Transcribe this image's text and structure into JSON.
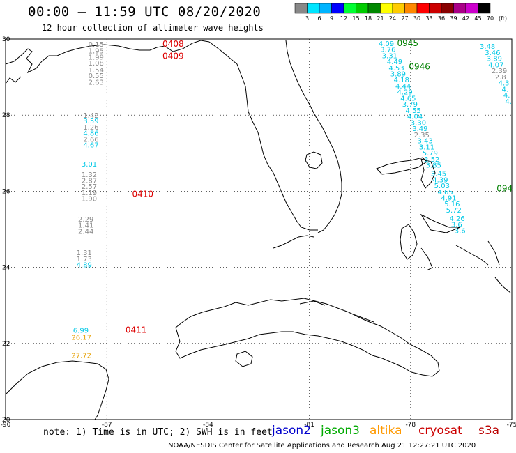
{
  "header": {
    "title": "00:00 – 11:59 UTC 08/20/2020",
    "subtitle": "12 hour collection of altimeter wave heights"
  },
  "legend": {
    "unit": "(ft)",
    "labels": [
      "3",
      "6",
      "9",
      "12",
      "15",
      "18",
      "21",
      "24",
      "27",
      "30",
      "33",
      "36",
      "39",
      "42",
      "45",
      "70"
    ],
    "colors": [
      "#888888",
      "#00e5ff",
      "#00b4ff",
      "#0000ff",
      "#00ff33",
      "#00cc00",
      "#008800",
      "#ffff00",
      "#ffcc00",
      "#ff8800",
      "#ff0000",
      "#cc0000",
      "#880000",
      "#aa0088",
      "#cc00cc",
      "#000000"
    ]
  },
  "axes": {
    "x_labels": [
      "-90",
      "-87",
      "-84",
      "-81",
      "-78",
      "-75"
    ],
    "y_labels": [
      "30",
      "28",
      "26",
      "24",
      "22",
      "20"
    ],
    "lon_range": [
      -90,
      -75
    ],
    "lat_range": [
      20,
      30
    ]
  },
  "tracks": [
    {
      "time": "0408",
      "color": "#dd0000",
      "lon": -85.35,
      "lat": 29.8
    },
    {
      "time": "0409",
      "color": "#dd0000",
      "lon": -85.35,
      "lat": 29.48
    },
    {
      "time": "0410",
      "color": "#dd0000",
      "lon": -86.25,
      "lat": 25.85
    },
    {
      "time": "0411",
      "color": "#dd0000",
      "lon": -86.45,
      "lat": 22.28
    },
    {
      "time": "0945",
      "color": "#008000",
      "lon": -78.4,
      "lat": 29.82
    },
    {
      "time": "0946",
      "color": "#008000",
      "lon": -78.05,
      "lat": 29.2
    },
    {
      "time": "094",
      "color": "#008000",
      "lon": -75.45,
      "lat": 26.0
    }
  ],
  "readings": [
    {
      "v": "0.15",
      "c": "#888888",
      "lon": -87.55,
      "lat": 29.8
    },
    {
      "v": "1.95",
      "c": "#888888",
      "lon": -87.55,
      "lat": 29.62
    },
    {
      "v": "1.99",
      "c": "#888888",
      "lon": -87.55,
      "lat": 29.46
    },
    {
      "v": "1.08",
      "c": "#888888",
      "lon": -87.55,
      "lat": 29.3
    },
    {
      "v": "1.54",
      "c": "#888888",
      "lon": -87.55,
      "lat": 29.12
    },
    {
      "v": "0.55",
      "c": "#888888",
      "lon": -87.55,
      "lat": 28.97
    },
    {
      "v": "2.63",
      "c": "#888888",
      "lon": -87.55,
      "lat": 28.8
    },
    {
      "v": "1.42",
      "c": "#888888",
      "lon": -87.7,
      "lat": 27.93
    },
    {
      "v": "3.59",
      "c": "#00c8e6",
      "lon": -87.7,
      "lat": 27.78
    },
    {
      "v": "1.26",
      "c": "#888888",
      "lon": -87.7,
      "lat": 27.62
    },
    {
      "v": "4.86",
      "c": "#00c8e6",
      "lon": -87.7,
      "lat": 27.46
    },
    {
      "v": "2.66",
      "c": "#888888",
      "lon": -87.7,
      "lat": 27.3
    },
    {
      "v": "4.67",
      "c": "#00c8e6",
      "lon": -87.7,
      "lat": 27.15
    },
    {
      "v": "3.01",
      "c": "#00c8e6",
      "lon": -87.75,
      "lat": 26.65
    },
    {
      "v": "1.32",
      "c": "#888888",
      "lon": -87.75,
      "lat": 26.37
    },
    {
      "v": "2.87",
      "c": "#888888",
      "lon": -87.75,
      "lat": 26.22
    },
    {
      "v": "2.57",
      "c": "#888888",
      "lon": -87.75,
      "lat": 26.06
    },
    {
      "v": "1.19",
      "c": "#888888",
      "lon": -87.75,
      "lat": 25.9
    },
    {
      "v": "1.90",
      "c": "#888888",
      "lon": -87.75,
      "lat": 25.74
    },
    {
      "v": "2.29",
      "c": "#888888",
      "lon": -87.85,
      "lat": 25.2
    },
    {
      "v": "1.41",
      "c": "#888888",
      "lon": -87.85,
      "lat": 25.05
    },
    {
      "v": "2.44",
      "c": "#888888",
      "lon": -87.85,
      "lat": 24.88
    },
    {
      "v": "1.31",
      "c": "#888888",
      "lon": -87.9,
      "lat": 24.32
    },
    {
      "v": "1.73",
      "c": "#888888",
      "lon": -87.9,
      "lat": 24.16
    },
    {
      "v": "4.89",
      "c": "#00c8e6",
      "lon": -87.9,
      "lat": 24.0
    },
    {
      "v": "6.99",
      "c": "#00c8e6",
      "lon": -88.0,
      "lat": 22.28
    },
    {
      "v": "26.17",
      "c": "#e6a000",
      "lon": -88.05,
      "lat": 22.1
    },
    {
      "v": "27.72",
      "c": "#e6a000",
      "lon": -88.05,
      "lat": 21.62
    },
    {
      "v": "4.09",
      "c": "#00c8e6",
      "lon": -78.95,
      "lat": 29.82
    },
    {
      "v": "3.76",
      "c": "#00c8e6",
      "lon": -78.9,
      "lat": 29.66
    },
    {
      "v": "3.31",
      "c": "#00c8e6",
      "lon": -78.85,
      "lat": 29.5
    },
    {
      "v": "4.49",
      "c": "#00c8e6",
      "lon": -78.7,
      "lat": 29.34
    },
    {
      "v": "4.53",
      "c": "#00c8e6",
      "lon": -78.65,
      "lat": 29.18
    },
    {
      "v": "3.89",
      "c": "#00c8e6",
      "lon": -78.6,
      "lat": 29.02
    },
    {
      "v": "4.18",
      "c": "#00c8e6",
      "lon": -78.5,
      "lat": 28.86
    },
    {
      "v": "4.44",
      "c": "#00c8e6",
      "lon": -78.45,
      "lat": 28.7
    },
    {
      "v": "4.29",
      "c": "#00c8e6",
      "lon": -78.4,
      "lat": 28.54
    },
    {
      "v": "4.65",
      "c": "#00c8e6",
      "lon": -78.3,
      "lat": 28.38
    },
    {
      "v": "3.79",
      "c": "#00c8e6",
      "lon": -78.25,
      "lat": 28.22
    },
    {
      "v": "4.55",
      "c": "#00c8e6",
      "lon": -78.15,
      "lat": 28.06
    },
    {
      "v": "4.04",
      "c": "#00c8e6",
      "lon": -78.1,
      "lat": 27.9
    },
    {
      "v": "3.30",
      "c": "#00c8e6",
      "lon": -78.0,
      "lat": 27.74
    },
    {
      "v": "3.49",
      "c": "#00c8e6",
      "lon": -77.95,
      "lat": 27.58
    },
    {
      "v": "2.35",
      "c": "#888888",
      "lon": -77.9,
      "lat": 27.42
    },
    {
      "v": "3.43",
      "c": "#00c8e6",
      "lon": -77.8,
      "lat": 27.26
    },
    {
      "v": "3.11",
      "c": "#00c8e6",
      "lon": -77.75,
      "lat": 27.1
    },
    {
      "v": "5.79",
      "c": "#00c8e6",
      "lon": -77.65,
      "lat": 26.94
    },
    {
      "v": "3.52",
      "c": "#00c8e6",
      "lon": -77.6,
      "lat": 26.78
    },
    {
      "v": "3.85",
      "c": "#00c8e6",
      "lon": -77.55,
      "lat": 26.62
    },
    {
      "v": "3.45",
      "c": "#00c8e6",
      "lon": -77.4,
      "lat": 26.4
    },
    {
      "v": "4.39",
      "c": "#00c8e6",
      "lon": -77.35,
      "lat": 26.24
    },
    {
      "v": "5.03",
      "c": "#00c8e6",
      "lon": -77.3,
      "lat": 26.08
    },
    {
      "v": "4.65",
      "c": "#00c8e6",
      "lon": -77.2,
      "lat": 25.92
    },
    {
      "v": "4.91",
      "c": "#00c8e6",
      "lon": -77.1,
      "lat": 25.76
    },
    {
      "v": "5.16",
      "c": "#00c8e6",
      "lon": -77.0,
      "lat": 25.6
    },
    {
      "v": "5.72",
      "c": "#00c8e6",
      "lon": -76.95,
      "lat": 25.44
    },
    {
      "v": "4.26",
      "c": "#00c8e6",
      "lon": -76.85,
      "lat": 25.22
    },
    {
      "v": "3.6",
      "c": "#00c8e6",
      "lon": -76.8,
      "lat": 25.06
    },
    {
      "v": "3.6",
      "c": "#00c8e6",
      "lon": -76.7,
      "lat": 24.9
    },
    {
      "v": "3.48",
      "c": "#00c8e6",
      "lon": -75.95,
      "lat": 29.74
    },
    {
      "v": "3.46",
      "c": "#00c8e6",
      "lon": -75.8,
      "lat": 29.58
    },
    {
      "v": "3.89",
      "c": "#00c8e6",
      "lon": -75.75,
      "lat": 29.42
    },
    {
      "v": "4.07",
      "c": "#00c8e6",
      "lon": -75.7,
      "lat": 29.26
    },
    {
      "v": "2.39",
      "c": "#888888",
      "lon": -75.6,
      "lat": 29.1
    },
    {
      "v": "2.8",
      "c": "#888888",
      "lon": -75.5,
      "lat": 28.94
    },
    {
      "v": "4.3",
      "c": "#00c8e6",
      "lon": -75.4,
      "lat": 28.78
    },
    {
      "v": "4.",
      "c": "#00c8e6",
      "lon": -75.3,
      "lat": 28.62
    },
    {
      "v": "4.",
      "c": "#00c8e6",
      "lon": -75.25,
      "lat": 28.46
    },
    {
      "v": "4.",
      "c": "#00c8e6",
      "lon": -75.2,
      "lat": 28.3
    }
  ],
  "footer": {
    "note": "note: 1) Time is in UTC; 2) SWH is in feet",
    "credit": "NOAA/NESDIS Center for Satellite Applications and Research    Aug 21 12:27:21 UTC 2020",
    "satellites": [
      {
        "name": "jason2",
        "color": "#0000cc"
      },
      {
        "name": "jason3",
        "color": "#00aa00"
      },
      {
        "name": "altika",
        "color": "#ff9900"
      },
      {
        "name": "cryosat",
        "color": "#cc0000"
      },
      {
        "name": "s3a",
        "color": "#bb0000"
      }
    ]
  }
}
